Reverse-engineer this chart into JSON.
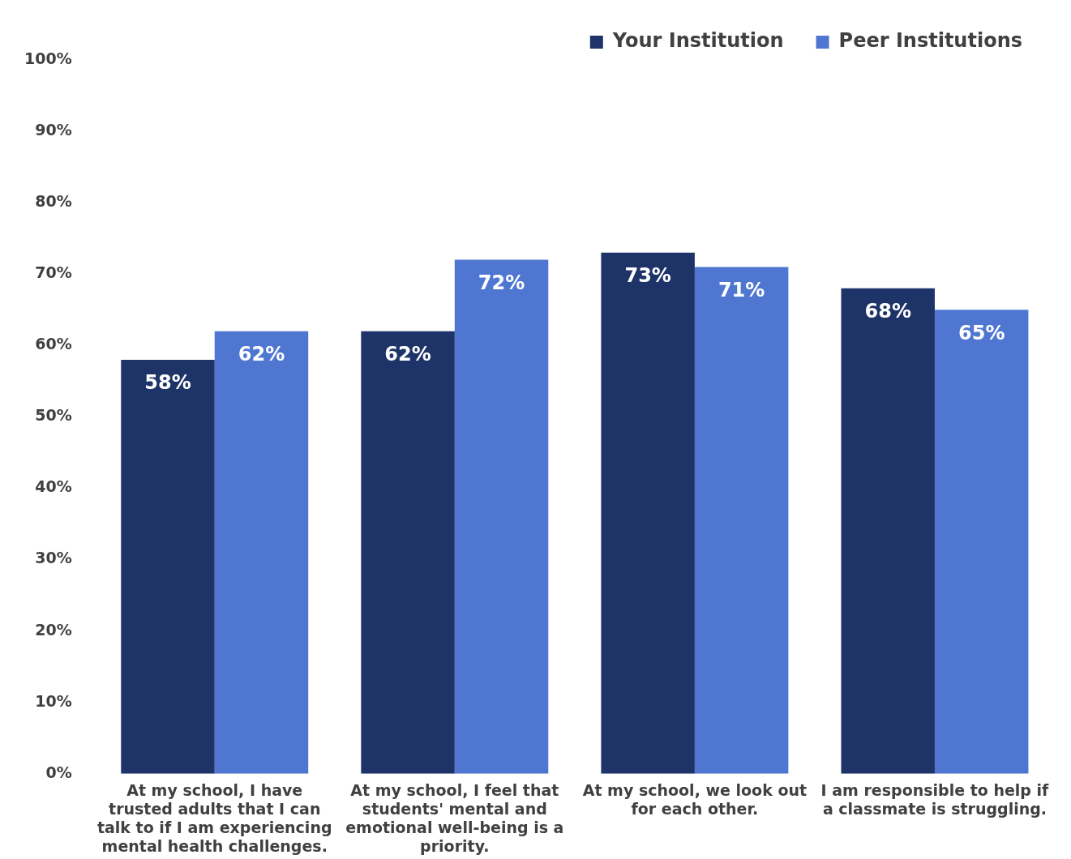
{
  "chart_data": {
    "type": "bar",
    "categories": [
      "At my school, I have trusted adults that I can talk to if I am experiencing mental health challenges.",
      "At my school, I feel that students' mental and emotional well-being is a priority.",
      "At my school, we look out for each other.",
      "I am responsible to help if a classmate is struggling."
    ],
    "series": [
      {
        "name": "Your Institution",
        "color": "#1e3469",
        "values": [
          58,
          62,
          73,
          68
        ],
        "value_labels": [
          "58%",
          "62%",
          "73%",
          "68%"
        ]
      },
      {
        "name": "Peer Institutions",
        "color": "#4f76d1",
        "values": [
          62,
          72,
          71,
          65
        ],
        "value_labels": [
          "62%",
          "72%",
          "71%",
          "65%"
        ]
      }
    ],
    "ylim": [
      0,
      100
    ],
    "yticks": [
      {
        "value": 0,
        "label": "0%"
      },
      {
        "value": 10,
        "label": "10%"
      },
      {
        "value": 20,
        "label": "20%"
      },
      {
        "value": 30,
        "label": "30%"
      },
      {
        "value": 40,
        "label": "40%"
      },
      {
        "value": 50,
        "label": "50%"
      },
      {
        "value": 60,
        "label": "60%"
      },
      {
        "value": 70,
        "label": "70%"
      },
      {
        "value": 80,
        "label": "80%"
      },
      {
        "value": 90,
        "label": "90%"
      },
      {
        "value": 100,
        "label": "100%"
      }
    ],
    "grid": false,
    "legend": "top right"
  }
}
